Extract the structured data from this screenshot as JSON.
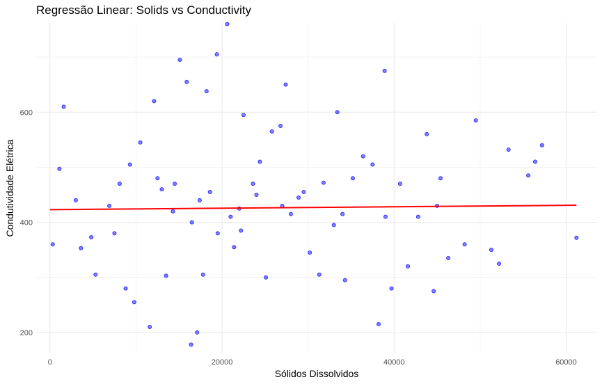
{
  "chart_data": {
    "type": "scatter",
    "title": "Regressão Linear: Solids vs Conductivity",
    "xlabel": "Sólidos Dissolvidos",
    "ylabel": "Condutividade Elétrica",
    "xlim": [
      -1600,
      63600
    ],
    "ylim": [
      162,
      762
    ],
    "x_ticks": [
      0,
      20000,
      40000,
      60000
    ],
    "x_tick_labels": [
      "0",
      "20000",
      "40000",
      "60000"
    ],
    "y_ticks": [
      200,
      400,
      600
    ],
    "y_tick_labels": [
      "200",
      "400",
      "600"
    ],
    "grid": true,
    "legend": "none",
    "colors": {
      "points": "#0000ff",
      "regression_line": "#ff0000",
      "grid": "#ebebeb"
    },
    "series": [
      {
        "kind": "points",
        "x": [
          320,
          1100,
          1600,
          3600,
          4800,
          5300,
          6900,
          8100,
          8800,
          9300,
          9800,
          10500,
          11600,
          12100,
          13500,
          14300,
          15100,
          15900,
          16400,
          17100,
          17400,
          17800,
          18200,
          18600,
          19400,
          20600,
          21400,
          22200,
          22500,
          23600,
          24400,
          25100,
          25800,
          26800,
          27400,
          28000,
          28900,
          29500,
          30200,
          31300,
          31800,
          33400,
          34300,
          35200,
          36400,
          37500,
          38200,
          38900,
          39700,
          40700,
          41600,
          42800,
          43800,
          44600,
          45400,
          46300,
          48200,
          49500,
          51300,
          52200,
          53300,
          55600,
          56400,
          57200,
          61200,
          3000,
          7500,
          13000,
          21000,
          27000,
          33000,
          39000,
          16500,
          24000,
          14500,
          19500,
          34000,
          45000,
          12500,
          22000
        ],
        "y": [
          360,
          497,
          610,
          353,
          373,
          305,
          430,
          470,
          280,
          505,
          255,
          545,
          210,
          620,
          303,
          420,
          695,
          655,
          178,
          200,
          440,
          305,
          638,
          455,
          705,
          760,
          355,
          385,
          595,
          470,
          510,
          300,
          565,
          575,
          650,
          415,
          445,
          455,
          345,
          305,
          472,
          600,
          295,
          480,
          520,
          505,
          215,
          675,
          280,
          470,
          320,
          410,
          560,
          275,
          480,
          335,
          360,
          585,
          350,
          325,
          532,
          485,
          510,
          540,
          372,
          440,
          380,
          460,
          410,
          430,
          395,
          410,
          400,
          450,
          470,
          380,
          415,
          430,
          480,
          425
        ]
      },
      {
        "kind": "regression_line",
        "x": [
          0,
          61200
        ],
        "y": [
          423,
          431
        ]
      }
    ]
  }
}
